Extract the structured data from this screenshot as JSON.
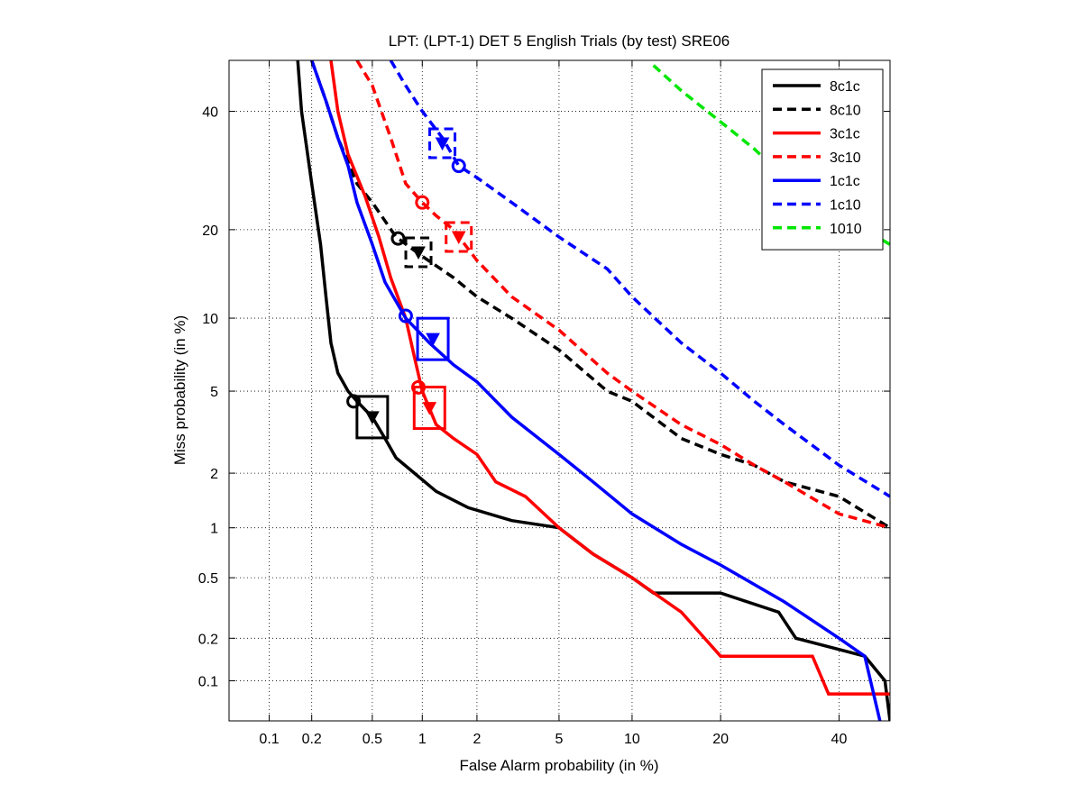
{
  "chart_data": {
    "type": "line",
    "title": "LPT: (LPT-1) DET 5 English Trials (by test) SRE06",
    "xlabel": "False Alarm probability (in %)",
    "ylabel": "Miss probability (in %)",
    "x_scale": "probit",
    "y_scale": "probit",
    "xlim": [
      0.05,
      50
    ],
    "ylim": [
      0.05,
      50
    ],
    "x_ticks": [
      0.1,
      0.2,
      0.5,
      1,
      2,
      5,
      10,
      20,
      40
    ],
    "x_tick_labels": [
      "0.1",
      "0.2",
      "0.5",
      "1",
      "2",
      "5",
      "10",
      "20",
      "40"
    ],
    "y_ticks": [
      0.1,
      0.2,
      0.5,
      1,
      2,
      5,
      10,
      20,
      40
    ],
    "y_tick_labels": [
      "0.1",
      "0.2",
      "0.5",
      "1",
      "2",
      "5",
      "10",
      "20",
      "40"
    ],
    "grid": true,
    "legend_position": "top-right",
    "series": [
      {
        "name": "8c1c",
        "color": "#000000",
        "dash": "solid",
        "points": [
          [
            0.16,
            50
          ],
          [
            0.17,
            40
          ],
          [
            0.2,
            27
          ],
          [
            0.23,
            18
          ],
          [
            0.25,
            12
          ],
          [
            0.27,
            8
          ],
          [
            0.3,
            6
          ],
          [
            0.35,
            5
          ],
          [
            0.4,
            4.5
          ],
          [
            0.5,
            3.8
          ],
          [
            0.6,
            3
          ],
          [
            0.7,
            2.4
          ],
          [
            0.9,
            2
          ],
          [
            1.2,
            1.6
          ],
          [
            1.8,
            1.3
          ],
          [
            3,
            1.1
          ],
          [
            5,
            1
          ],
          [
            7,
            0.7
          ],
          [
            10,
            0.5
          ],
          [
            12,
            0.4
          ],
          [
            20,
            0.4
          ],
          [
            29,
            0.3
          ],
          [
            32,
            0.2
          ],
          [
            45,
            0.15
          ],
          [
            49,
            0.1
          ],
          [
            50,
            0.05
          ]
        ],
        "actual_marker": [
          0.5,
          3.8
        ],
        "min_marker": [
          0.38,
          4.5
        ]
      },
      {
        "name": "8c10",
        "color": "#000000",
        "dash": "dashed",
        "points": [
          [
            0.2,
            50
          ],
          [
            0.25,
            42
          ],
          [
            0.3,
            35
          ],
          [
            0.4,
            27
          ],
          [
            0.5,
            24
          ],
          [
            0.7,
            19
          ],
          [
            1,
            16.5
          ],
          [
            1.5,
            14
          ],
          [
            2,
            12
          ],
          [
            3,
            10
          ],
          [
            5,
            7.5
          ],
          [
            8,
            5
          ],
          [
            10,
            4.5
          ],
          [
            15,
            3
          ],
          [
            20,
            2.5
          ],
          [
            25,
            2.2
          ],
          [
            30,
            1.8
          ],
          [
            40,
            1.5
          ],
          [
            50,
            1
          ]
        ],
        "actual_marker": [
          0.95,
          17
        ],
        "min_marker": [
          0.72,
          18.8
        ]
      },
      {
        "name": "3c1c",
        "color": "#ff0000",
        "dash": "solid",
        "points": [
          [
            0.27,
            50
          ],
          [
            0.3,
            40
          ],
          [
            0.35,
            32
          ],
          [
            0.45,
            25
          ],
          [
            0.55,
            19
          ],
          [
            0.65,
            14
          ],
          [
            0.8,
            10
          ],
          [
            0.9,
            7
          ],
          [
            1,
            5
          ],
          [
            1.2,
            3.5
          ],
          [
            1.5,
            3
          ],
          [
            2,
            2.5
          ],
          [
            2.5,
            1.8
          ],
          [
            3.5,
            1.5
          ],
          [
            5,
            1
          ],
          [
            7,
            0.7
          ],
          [
            10,
            0.5
          ],
          [
            15,
            0.3
          ],
          [
            20,
            0.15
          ],
          [
            35,
            0.15
          ],
          [
            38,
            0.08
          ],
          [
            50,
            0.08
          ]
        ],
        "actual_marker": [
          1.1,
          4.2
        ],
        "min_marker": [
          0.95,
          5.2
        ]
      },
      {
        "name": "3c10",
        "color": "#ff0000",
        "dash": "dashed",
        "points": [
          [
            0.4,
            50
          ],
          [
            0.5,
            45
          ],
          [
            0.65,
            35
          ],
          [
            0.8,
            27
          ],
          [
            1,
            24
          ],
          [
            1.2,
            22
          ],
          [
            1.5,
            20
          ],
          [
            2,
            16
          ],
          [
            3,
            12
          ],
          [
            5,
            9
          ],
          [
            8,
            6
          ],
          [
            10,
            5
          ],
          [
            15,
            3.5
          ],
          [
            20,
            2.8
          ],
          [
            25,
            2.2
          ],
          [
            30,
            1.8
          ],
          [
            40,
            1.2
          ],
          [
            50,
            1
          ]
        ],
        "actual_marker": [
          1.6,
          19
        ],
        "min_marker": [
          1,
          24
        ]
      },
      {
        "name": "1c1c",
        "color": "#0000ff",
        "dash": "solid",
        "points": [
          [
            0.2,
            50
          ],
          [
            0.25,
            42
          ],
          [
            0.3,
            35
          ],
          [
            0.35,
            30
          ],
          [
            0.4,
            24
          ],
          [
            0.5,
            18
          ],
          [
            0.6,
            13.5
          ],
          [
            0.8,
            10
          ],
          [
            1.1,
            8
          ],
          [
            1.5,
            6.5
          ],
          [
            2,
            5.5
          ],
          [
            3,
            3.8
          ],
          [
            5,
            2.5
          ],
          [
            7,
            1.8
          ],
          [
            10,
            1.2
          ],
          [
            15,
            0.8
          ],
          [
            20,
            0.6
          ],
          [
            30,
            0.35
          ],
          [
            40,
            0.2
          ],
          [
            45,
            0.15
          ],
          [
            48,
            0.05
          ]
        ],
        "actual_marker": [
          1.15,
          8.3
        ],
        "min_marker": [
          0.8,
          10.2
        ]
      },
      {
        "name": "1c10",
        "color": "#0000ff",
        "dash": "dashed",
        "points": [
          [
            0.65,
            50
          ],
          [
            0.8,
            45
          ],
          [
            1,
            40
          ],
          [
            1.3,
            35
          ],
          [
            1.6,
            30
          ],
          [
            2,
            28
          ],
          [
            3,
            24
          ],
          [
            5,
            19
          ],
          [
            8,
            15
          ],
          [
            10,
            12
          ],
          [
            15,
            8
          ],
          [
            20,
            6
          ],
          [
            25,
            4.5
          ],
          [
            30,
            3.5
          ],
          [
            40,
            2.2
          ],
          [
            50,
            1.5
          ]
        ],
        "actual_marker": [
          1.3,
          34
        ],
        "min_marker": [
          1.6,
          30
        ]
      },
      {
        "name": "1010",
        "color": "#00e600",
        "dash": "dashed",
        "points": [
          [
            12,
            49
          ],
          [
            15,
            44
          ],
          [
            20,
            38
          ],
          [
            25,
            33
          ],
          [
            30,
            28
          ],
          [
            35,
            25
          ],
          [
            40,
            22
          ],
          [
            45,
            20
          ],
          [
            50,
            18
          ]
        ]
      }
    ]
  }
}
